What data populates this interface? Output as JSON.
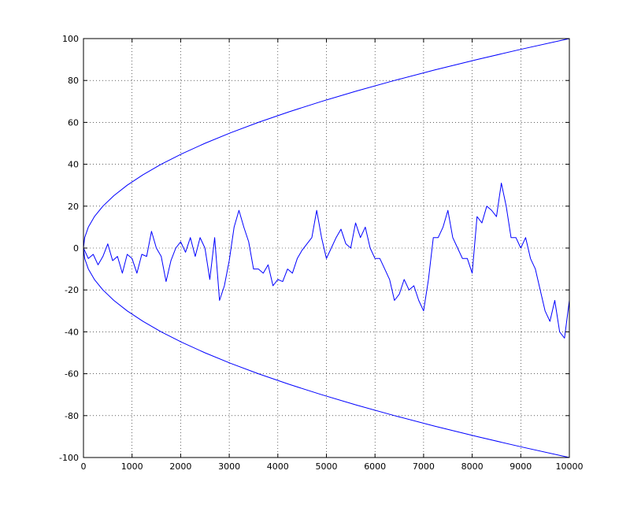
{
  "chart_data": {
    "type": "line",
    "title": "",
    "xlabel": "",
    "ylabel": "",
    "xlim": [
      0,
      10000
    ],
    "ylim": [
      -100,
      100
    ],
    "grid": true,
    "line_color": "#0000ff",
    "x_ticks": [
      0,
      1000,
      2000,
      3000,
      4000,
      5000,
      6000,
      7000,
      8000,
      9000,
      10000
    ],
    "x_tick_labels": [
      "0",
      "1000",
      "2000",
      "3000",
      "4000",
      "5000",
      "6000",
      "7000",
      "8000",
      "9000",
      "10000"
    ],
    "y_ticks": [
      -100,
      -80,
      -60,
      -40,
      -20,
      0,
      20,
      40,
      60,
      80,
      100
    ],
    "y_tick_labels": [
      "-100",
      "-80",
      "-60",
      "-40",
      "-20",
      "0",
      "20",
      "40",
      "60",
      "80",
      "100"
    ],
    "series": [
      {
        "description": "random walk",
        "x": [
          0,
          100,
          200,
          300,
          400,
          500,
          600,
          700,
          800,
          900,
          1000,
          1100,
          1200,
          1300,
          1400,
          1500,
          1600,
          1700,
          1800,
          1900,
          2000,
          2100,
          2200,
          2300,
          2400,
          2500,
          2600,
          2700,
          2800,
          2900,
          3000,
          3100,
          3200,
          3300,
          3400,
          3500,
          3600,
          3700,
          3800,
          3900,
          4000,
          4100,
          4200,
          4300,
          4400,
          4500,
          4600,
          4700,
          4800,
          4900,
          5000,
          5100,
          5200,
          5300,
          5400,
          5500,
          5600,
          5700,
          5800,
          5900,
          6000,
          6100,
          6200,
          6300,
          6400,
          6500,
          6600,
          6700,
          6800,
          6900,
          7000,
          7100,
          7200,
          7300,
          7400,
          7500,
          7600,
          7700,
          7800,
          7900,
          8000,
          8100,
          8200,
          8300,
          8400,
          8500,
          8600,
          8700,
          8800,
          8900,
          9000,
          9100,
          9200,
          9300,
          9400,
          9500,
          9600,
          9700,
          9800,
          9900,
          10000
        ],
        "y": [
          0,
          -5,
          -3,
          -8,
          -4,
          2,
          -6,
          -4,
          -12,
          -3,
          -5,
          -12,
          -3,
          -4,
          8,
          0,
          -4,
          -16,
          -6,
          0,
          3,
          -2,
          5,
          -4,
          5,
          0,
          -15,
          5,
          -25,
          -18,
          -6,
          10,
          18,
          10,
          3,
          -10,
          -10,
          -12,
          -8,
          -18,
          -15,
          -16,
          -10,
          -12,
          -5,
          -1,
          2,
          5,
          18,
          5,
          -5,
          0,
          5,
          9,
          2,
          0,
          12,
          5,
          10,
          0,
          -5,
          -5,
          -10,
          -15,
          -25,
          -22,
          -15,
          -20,
          -18,
          -25,
          -30,
          -15,
          5,
          5,
          10,
          18,
          5,
          0,
          -5,
          -5,
          -12,
          15,
          12,
          20,
          18,
          15,
          31,
          20,
          5,
          5,
          0,
          5,
          -5,
          -10,
          -20,
          -30,
          -35,
          -25,
          -40,
          -43,
          -25
        ]
      },
      {
        "description": "upper envelope +sqrt(x)",
        "x": [
          0,
          25,
          100,
          225,
          400,
          625,
          900,
          1225,
          1600,
          2025,
          2500,
          3025,
          3600,
          4225,
          4900,
          5625,
          6400,
          7225,
          8100,
          9025,
          10000
        ],
        "y": [
          0,
          5,
          10,
          15,
          20,
          25,
          30,
          35,
          40,
          45,
          50,
          55,
          60,
          65,
          70,
          75,
          80,
          85,
          90,
          95,
          100
        ]
      },
      {
        "description": "lower envelope -sqrt(x)",
        "x": [
          0,
          25,
          100,
          225,
          400,
          625,
          900,
          1225,
          1600,
          2025,
          2500,
          3025,
          3600,
          4225,
          4900,
          5625,
          6400,
          7225,
          8100,
          9025,
          10000
        ],
        "y": [
          0,
          -5,
          -10,
          -15,
          -20,
          -25,
          -30,
          -35,
          -40,
          -45,
          -50,
          -55,
          -60,
          -65,
          -70,
          -75,
          -80,
          -85,
          -90,
          -95,
          -100
        ]
      }
    ]
  }
}
